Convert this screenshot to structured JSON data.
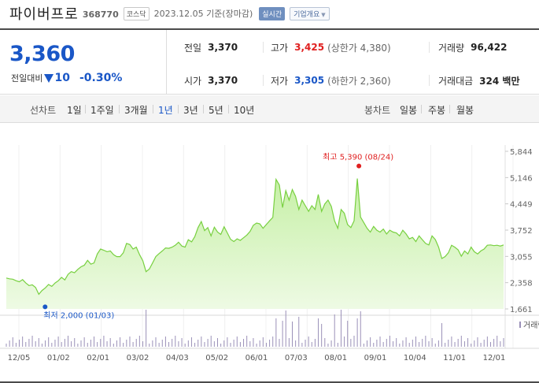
{
  "header": {
    "name": "파이버프로",
    "code": "368770",
    "market": "코스닥",
    "asof": "2023.12.05 기준(장마감)",
    "realtime": "실시간",
    "company_btn": "기업개요"
  },
  "price": {
    "current": "3,360",
    "change_label": "전일대비",
    "change": "10",
    "change_pct": "-0.30%"
  },
  "stats": {
    "prev_close_label": "전일",
    "prev_close": "3,370",
    "high_label": "고가",
    "high": "3,425",
    "upper_limit": "(상한가 4,380)",
    "volume_label": "거래량",
    "volume": "96,422",
    "open_label": "시가",
    "open": "3,370",
    "low_label": "저가",
    "low": "3,305",
    "lower_limit": "(하한가 2,360)",
    "amount_label": "거래대금",
    "amount": "324 백만"
  },
  "toolbar": {
    "line_label": "선차트",
    "periods": [
      "1일",
      "1주일",
      "3개월",
      "1년",
      "3년",
      "5년",
      "10년"
    ],
    "active_period": "1년",
    "candle_label": "봉차트",
    "candles": [
      "일봉",
      "주봉",
      "월봉"
    ]
  },
  "colors": {
    "up": "#e02020",
    "down": "#1a57c7",
    "line": "#78d040",
    "area_top": "#c6f0a6",
    "area_bottom": "#eefae4",
    "volume": "#9a90b8"
  },
  "chart_data": {
    "type": "area",
    "y_ticks": [
      "5,844",
      "5,146",
      "4,449",
      "3,752",
      "3,055",
      "2,358",
      "1,661"
    ],
    "ylim": [
      1661,
      5844
    ],
    "x_labels": [
      "12/05",
      "01/02",
      "02/01",
      "03/02",
      "04/03",
      "05/02",
      "06/01",
      "07/03",
      "08/01",
      "09/01",
      "10/04",
      "11/01",
      "12/01"
    ],
    "high_annotation": "최고 5,390 (08/24)",
    "low_annotation": "최저 2,000 (01/03)",
    "volume_label": "거래량",
    "series": [
      {
        "values": [
          2480,
          2460,
          2450,
          2410,
          2380,
          2440,
          2350,
          2280,
          2300,
          2230,
          2050,
          2150,
          2220,
          2310,
          2260,
          2350,
          2410,
          2500,
          2430,
          2580,
          2650,
          2620,
          2710,
          2780,
          2820,
          2950,
          2850,
          2880,
          3120,
          3250,
          3220,
          3180,
          3200,
          3100,
          3050,
          3050,
          3150,
          3400,
          3370,
          3250,
          3300,
          3100,
          2940,
          2650,
          2720,
          2880,
          3050,
          3130,
          3200,
          3280,
          3270,
          3300,
          3350,
          3430,
          3330,
          3300,
          3500,
          3440,
          3580,
          3820,
          3980,
          3740,
          3820,
          3600,
          3830,
          3700,
          3640,
          3840,
          3680,
          3510,
          3450,
          3520,
          3480,
          3550,
          3620,
          3720,
          3880,
          3940,
          3920,
          3800,
          3900,
          4000,
          4090,
          5100,
          4950,
          4350,
          4800,
          4550,
          4830,
          4650,
          4300,
          4550,
          4400,
          4250,
          4400,
          4300,
          4700,
          4250,
          4450,
          4550,
          4380,
          4000,
          3800,
          4300,
          4200,
          3900,
          3820,
          4000,
          5120,
          4100,
          3950,
          3800,
          3700,
          3850,
          3750,
          3700,
          3780,
          3650,
          3750,
          3700,
          3680,
          3600,
          3750,
          3650,
          3520,
          3560,
          3450,
          3600,
          3500,
          3400,
          3360,
          3600,
          3500,
          3300,
          3000,
          3050,
          3150,
          3350,
          3300,
          3230,
          3060,
          3200,
          3120,
          3300,
          3180,
          3120,
          3200,
          3250,
          3350,
          3360,
          3340,
          3350,
          3330,
          3360
        ]
      }
    ]
  }
}
